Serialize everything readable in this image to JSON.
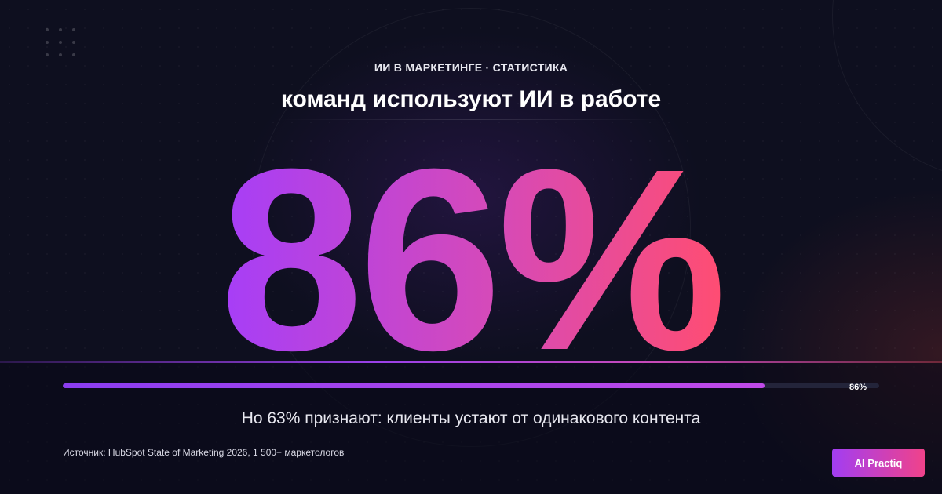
{
  "kicker": "ИИ В МАРКЕТИНГЕ · СТАТИСТИКА",
  "headline": "команд используют ИИ в работе",
  "stat": {
    "value": "86%",
    "fraction": 0.86,
    "gradient_start": "#a63ef8",
    "gradient_end": "#ff4d72"
  },
  "progress": {
    "label": "86%",
    "fraction": 0.86
  },
  "subline": "Но 63% признают: клиенты устают от одинакового контента",
  "source": "Источник: HubSpot State of Marketing 2026, 1 500+ маркетологов",
  "brand": {
    "label": "AI Practiq"
  },
  "colors": {
    "background": "#0e0f1f",
    "accent_purple": "#8b3df0",
    "accent_pink": "#f0428a"
  }
}
